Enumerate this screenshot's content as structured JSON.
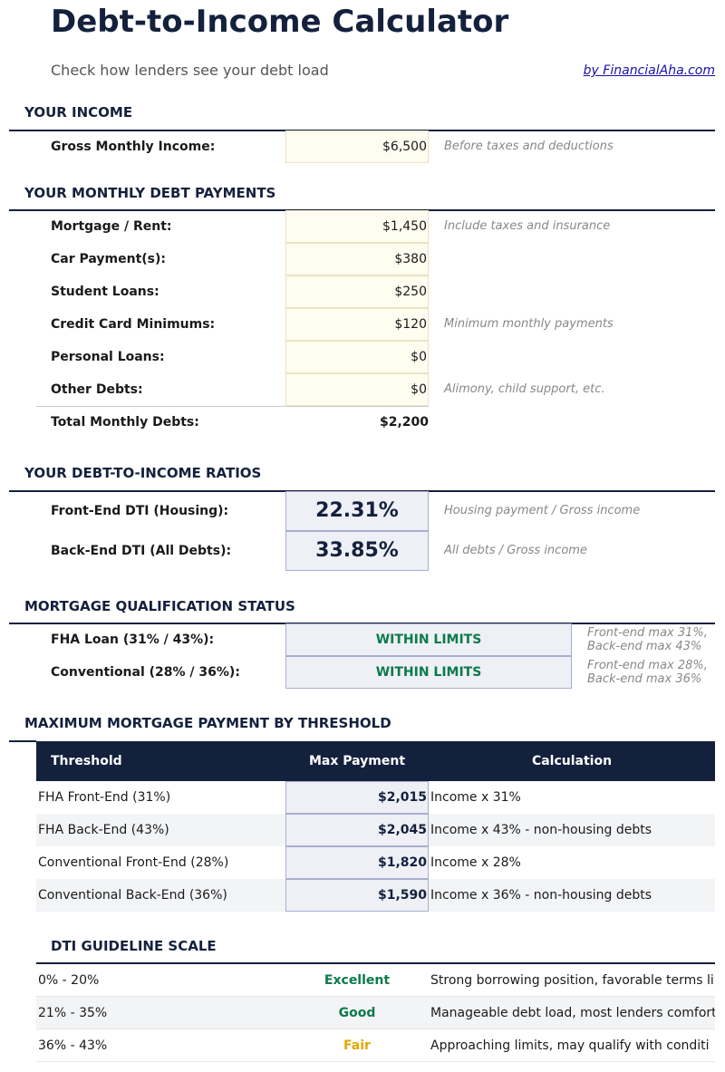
{
  "header": {
    "title": "Debt-to-Income Calculator",
    "subtitle": "Check how lenders see your debt load",
    "credit": "by FinancialAha.com"
  },
  "income": {
    "heading": "YOUR INCOME",
    "label": "Gross Monthly Income:",
    "value": "$6,500",
    "note": "Before taxes and deductions"
  },
  "debts": {
    "heading": "YOUR MONTHLY DEBT PAYMENTS",
    "items": [
      {
        "label": "Mortgage / Rent:",
        "value": "$1,450",
        "note": "Include taxes and insurance"
      },
      {
        "label": "Car Payment(s):",
        "value": "$380",
        "note": ""
      },
      {
        "label": "Student Loans:",
        "value": "$250",
        "note": ""
      },
      {
        "label": "Credit Card Minimums:",
        "value": "$120",
        "note": "Minimum monthly payments"
      },
      {
        "label": "Personal Loans:",
        "value": "$0",
        "note": ""
      },
      {
        "label": "Other Debts:",
        "value": "$0",
        "note": "Alimony, child support, etc."
      }
    ],
    "total_label": "Total Monthly Debts:",
    "total_value": "$2,200"
  },
  "ratios": {
    "heading": "YOUR DEBT-TO-INCOME RATIOS",
    "items": [
      {
        "label": "Front-End DTI (Housing):",
        "value": "22.31%",
        "note": "Housing payment / Gross income"
      },
      {
        "label": "Back-End DTI (All Debts):",
        "value": "33.85%",
        "note": "All debts / Gross income"
      }
    ]
  },
  "qualification": {
    "heading": "MORTGAGE QUALIFICATION STATUS",
    "items": [
      {
        "label": "FHA Loan (31% / 43%):",
        "status": "WITHIN LIMITS",
        "note1": "Front-end max 31%,",
        "note2": "Back-end max 43%"
      },
      {
        "label": "Conventional (28% / 36%):",
        "status": "WITHIN LIMITS",
        "note1": "Front-end max 28%,",
        "note2": "Back-end max 36%"
      }
    ]
  },
  "max_payment": {
    "heading": "MAXIMUM MORTGAGE PAYMENT BY THRESHOLD",
    "columns": [
      "Threshold",
      "Max Payment",
      "Calculation"
    ],
    "rows": [
      {
        "threshold": "FHA Front-End (31%)",
        "payment": "$2,015",
        "calc": "Income x 31%"
      },
      {
        "threshold": "FHA Back-End (43%)",
        "payment": "$2,045",
        "calc": "Income x 43% - non-housing debts"
      },
      {
        "threshold": "Conventional Front-End (28%)",
        "payment": "$1,820",
        "calc": "Income x 28%"
      },
      {
        "threshold": "Conventional Back-End (36%)",
        "payment": "$1,590",
        "calc": "Income x 36% - non-housing debts"
      }
    ]
  },
  "guideline": {
    "heading": "DTI GUIDELINE SCALE",
    "rows": [
      {
        "range": "0% - 20%",
        "rating": "Excellent",
        "color": "#0b7a4b",
        "desc": "Strong borrowing position, favorable terms li"
      },
      {
        "range": "21% - 35%",
        "rating": "Good",
        "color": "#0b7a4b",
        "desc": "Manageable debt load, most lenders comfort"
      },
      {
        "range": "36% - 43%",
        "rating": "Fair",
        "color": "#e0a800",
        "desc": "Approaching limits, may qualify with conditi"
      }
    ]
  },
  "colors": {
    "navy": "#14213d",
    "green": "#0b7a4b",
    "amber": "#e0a800"
  }
}
